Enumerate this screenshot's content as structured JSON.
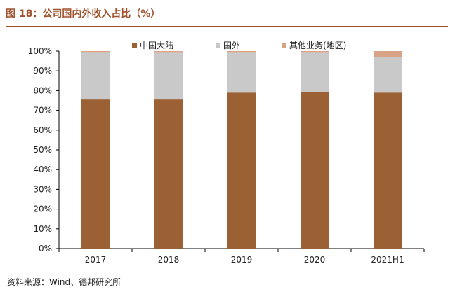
{
  "figure": {
    "title": "图 18：公司国内外收入占比（%）",
    "source": "资料来源：Wind、德邦研究所"
  },
  "chart_data": {
    "type": "bar",
    "stacked": true,
    "categories": [
      "2017",
      "2018",
      "2019",
      "2020",
      "2021H1"
    ],
    "series": [
      {
        "name": "中国大陆",
        "color": "#9b6134",
        "values": [
          75.5,
          75.5,
          79.0,
          79.5,
          79.0
        ]
      },
      {
        "name": "国外",
        "color": "#c9c9c9",
        "values": [
          24.0,
          24.0,
          20.5,
          20.0,
          18.0
        ]
      },
      {
        "name": "其他业务(地区)",
        "color": "#d9a485",
        "values": [
          0.5,
          0.5,
          0.5,
          0.5,
          3.0
        ]
      }
    ],
    "yticks": [
      "0%",
      "10%",
      "20%",
      "30%",
      "40%",
      "50%",
      "60%",
      "70%",
      "80%",
      "90%",
      "100%"
    ],
    "ylim": [
      0,
      100
    ],
    "grid": false,
    "legend_position": "top"
  }
}
